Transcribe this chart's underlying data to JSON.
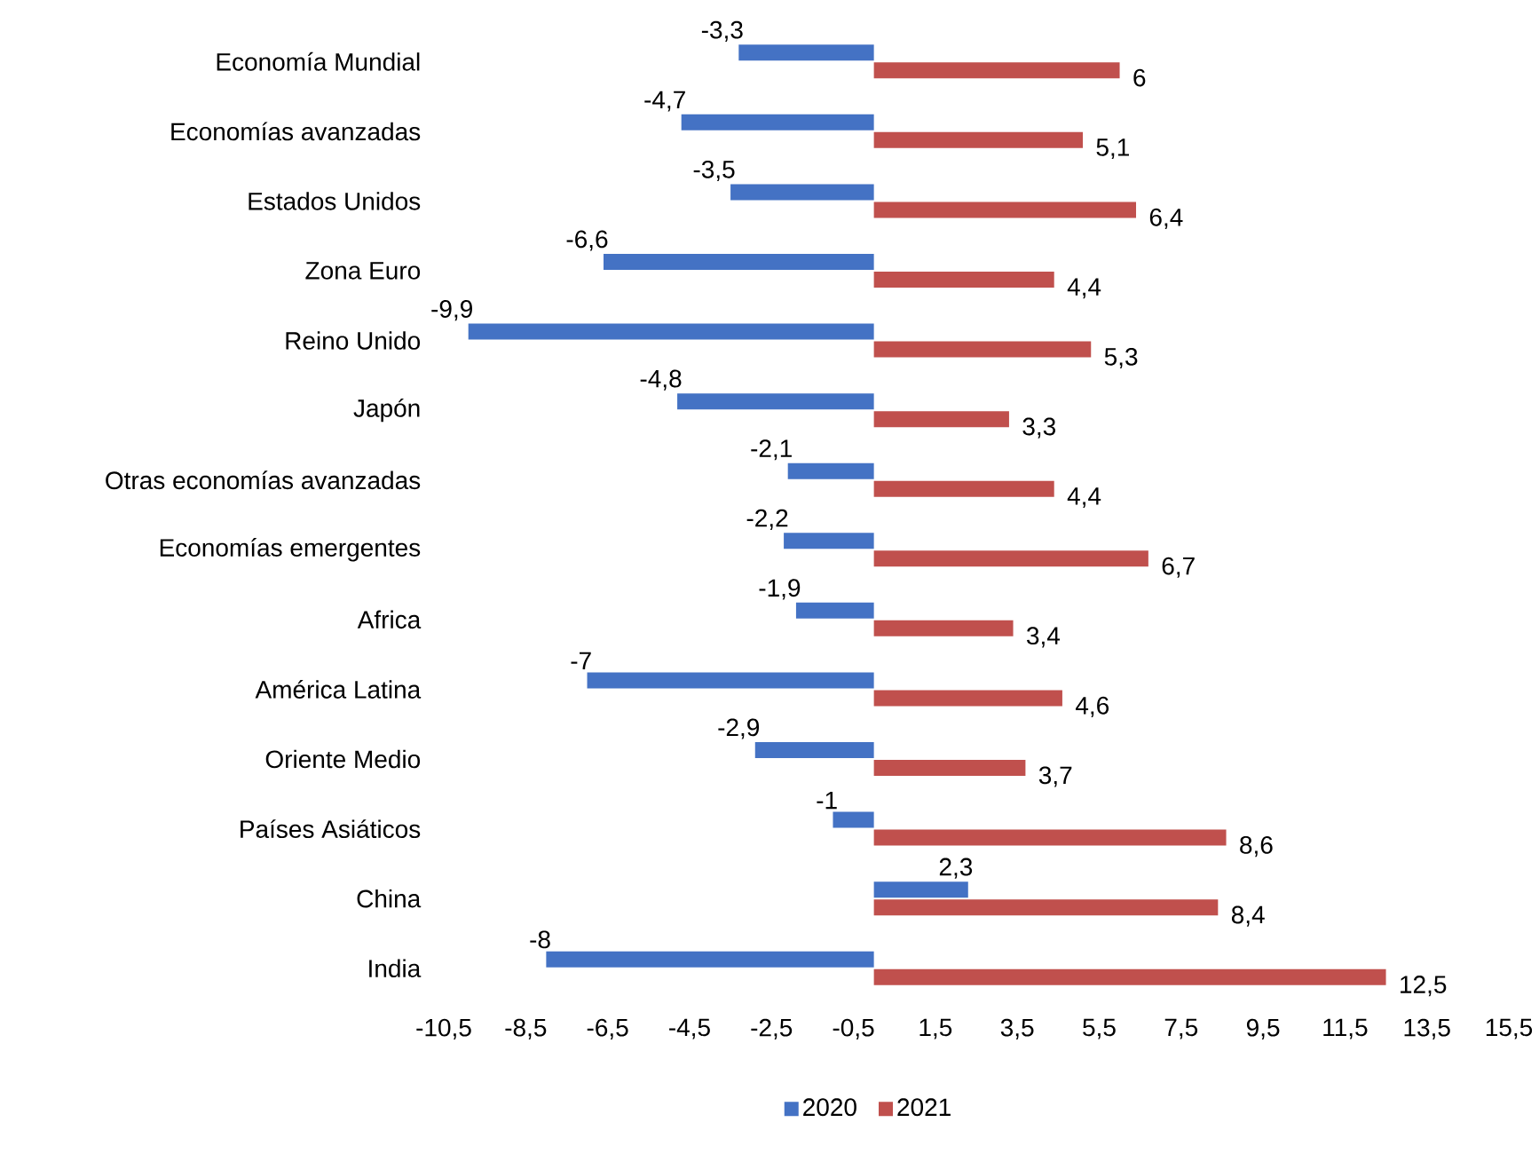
{
  "chart_data": {
    "type": "bar",
    "orientation": "horizontal",
    "categories": [
      "Economía Mundial",
      "Economías avanzadas",
      "Estados Unidos",
      "Zona Euro",
      "Reino Unido",
      "Japón",
      "Otras economías avanzadas",
      "Economías emergentes",
      "Africa",
      "América Latina",
      "Oriente Medio",
      "Países Asiáticos",
      "China",
      "India"
    ],
    "series": [
      {
        "name": "2020",
        "color": "#4472c4",
        "values": [
          -3.3,
          -4.7,
          -3.5,
          -6.6,
          -9.9,
          -4.8,
          -2.1,
          -2.2,
          -1.9,
          -7,
          -2.9,
          -1,
          2.3,
          -8
        ],
        "value_labels": [
          "-3,3",
          "-4,7",
          "-3,5",
          "-6,6",
          "-9,9",
          "-4,8",
          "-2,1",
          "-2,2",
          "-1,9",
          "-7",
          "-2,9",
          "-1",
          "2,3",
          "-8"
        ]
      },
      {
        "name": "2021",
        "color": "#c0504d",
        "values": [
          6,
          5.1,
          6.4,
          4.4,
          5.3,
          3.3,
          4.4,
          6.7,
          3.4,
          4.6,
          3.7,
          8.6,
          8.4,
          12.5
        ],
        "value_labels": [
          "6",
          "5,1",
          "6,4",
          "4,4",
          "5,3",
          "3,3",
          "4,4",
          "6,7",
          "3,4",
          "4,6",
          "3,7",
          "8,6",
          "8,4",
          "12,5"
        ]
      }
    ],
    "xlim": [
      -10.5,
      15.5
    ],
    "xticks": [
      {
        "value": -10.5,
        "label": "-10,5"
      },
      {
        "value": -8.5,
        "label": "-8,5"
      },
      {
        "value": -6.5,
        "label": "-6,5"
      },
      {
        "value": -4.5,
        "label": "-4,5"
      },
      {
        "value": -2.5,
        "label": "-2,5"
      },
      {
        "value": -0.5,
        "label": "-0,5"
      },
      {
        "value": 1.5,
        "label": "1,5"
      },
      {
        "value": 3.5,
        "label": "3,5"
      },
      {
        "value": 5.5,
        "label": "5,5"
      },
      {
        "value": 7.5,
        "label": "7,5"
      },
      {
        "value": 9.5,
        "label": "9,5"
      },
      {
        "value": 11.5,
        "label": "11,5"
      },
      {
        "value": 13.5,
        "label": "13,5"
      },
      {
        "value": 15.5,
        "label": "15,5"
      }
    ],
    "legend": "bottom",
    "grid": false
  }
}
